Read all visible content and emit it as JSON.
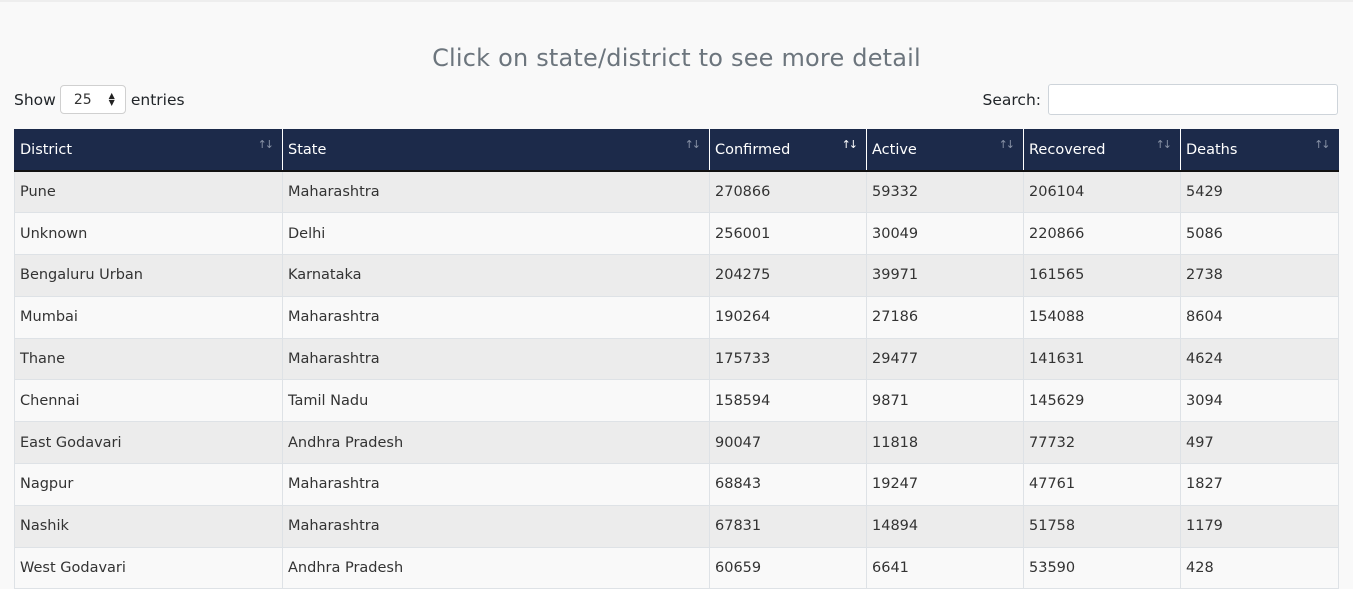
{
  "page": {
    "title": "Click on state/district to see more detail"
  },
  "controls": {
    "show_label": "Show",
    "entries_value": "25",
    "entries_label": "entries",
    "search_label": "Search:",
    "search_value": ""
  },
  "table": {
    "columns": [
      "District",
      "State",
      "Confirmed",
      "Active",
      "Recovered",
      "Deaths"
    ],
    "sorted_column": "Confirmed",
    "sort_direction": "descending",
    "rows": [
      [
        "Pune",
        "Maharashtra",
        "270866",
        "59332",
        "206104",
        "5429"
      ],
      [
        "Unknown",
        "Delhi",
        "256001",
        "30049",
        "220866",
        "5086"
      ],
      [
        "Bengaluru Urban",
        "Karnataka",
        "204275",
        "39971",
        "161565",
        "2738"
      ],
      [
        "Mumbai",
        "Maharashtra",
        "190264",
        "27186",
        "154088",
        "8604"
      ],
      [
        "Thane",
        "Maharashtra",
        "175733",
        "29477",
        "141631",
        "4624"
      ],
      [
        "Chennai",
        "Tamil Nadu",
        "158594",
        "9871",
        "145629",
        "3094"
      ],
      [
        "East Godavari",
        "Andhra Pradesh",
        "90047",
        "11818",
        "77732",
        "497"
      ],
      [
        "Nagpur",
        "Maharashtra",
        "68843",
        "19247",
        "47761",
        "1827"
      ],
      [
        "Nashik",
        "Maharashtra",
        "67831",
        "14894",
        "51758",
        "1179"
      ],
      [
        "West Godavari",
        "Andhra Pradesh",
        "60659",
        "6641",
        "53590",
        "428"
      ]
    ]
  },
  "colors": {
    "header_bg": "#1c2a4a",
    "title_text": "#6c757d",
    "stripe_row": "#ececec"
  }
}
